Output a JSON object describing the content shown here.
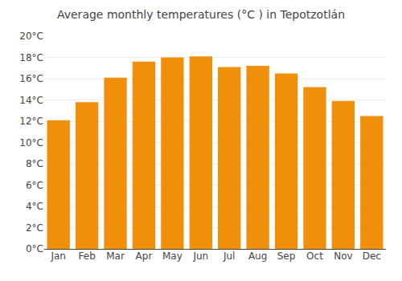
{
  "chart_data": {
    "type": "bar",
    "title": "Average monthly temperatures (°C ) in Tepotzotlán",
    "categories": [
      "Jan",
      "Feb",
      "Mar",
      "Apr",
      "May",
      "Jun",
      "Jul",
      "Aug",
      "Sep",
      "Oct",
      "Nov",
      "Dec"
    ],
    "values": [
      12.1,
      13.8,
      16.1,
      17.6,
      18.0,
      18.1,
      17.1,
      17.2,
      16.5,
      15.2,
      13.9,
      12.5
    ],
    "color": "#F0900A",
    "ylim": [
      0,
      20
    ],
    "yticks": [
      {
        "value": 0,
        "label": "0°C"
      },
      {
        "value": 2,
        "label": "2°C"
      },
      {
        "value": 4,
        "label": "4°C"
      },
      {
        "value": 6,
        "label": "6°C"
      },
      {
        "value": 8,
        "label": "8°C"
      },
      {
        "value": 10,
        "label": "10°C"
      },
      {
        "value": 12,
        "label": "12°C"
      },
      {
        "value": 14,
        "label": "14°C"
      },
      {
        "value": 16,
        "label": "16°C"
      },
      {
        "value": 18,
        "label": "18°C"
      },
      {
        "value": 20,
        "label": "20°C"
      }
    ],
    "grid": true
  }
}
